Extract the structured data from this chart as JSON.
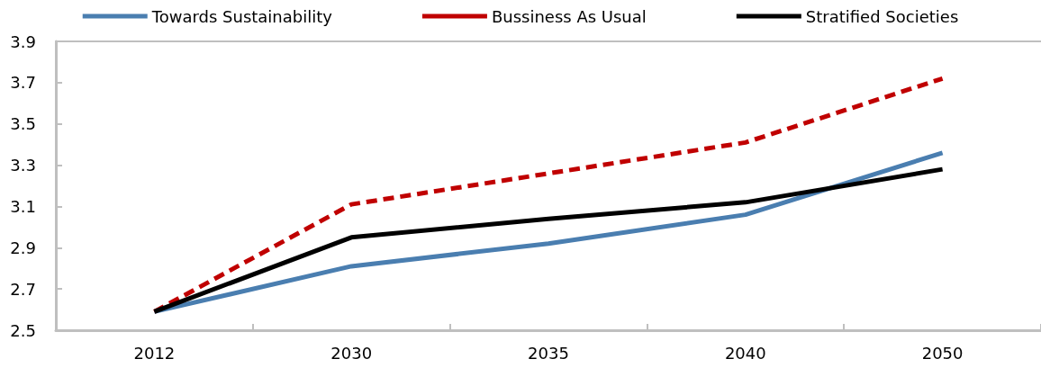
{
  "chart_data": {
    "type": "line",
    "categories": [
      "2012",
      "2030",
      "2035",
      "2040",
      "2050"
    ],
    "series": [
      {
        "name": "Towards Sustainability",
        "color": "#4a7eb0",
        "line_style": "solid",
        "values": [
          2.59,
          2.81,
          2.92,
          3.06,
          3.36
        ]
      },
      {
        "name": "Bussiness As Usual",
        "color": "#c00000",
        "line_style": "dashed",
        "values": [
          2.59,
          3.11,
          3.26,
          3.41,
          3.72
        ]
      },
      {
        "name": "Stratified Societies",
        "color": "#000000",
        "line_style": "solid",
        "values": [
          2.59,
          2.95,
          3.04,
          3.12,
          3.28
        ]
      }
    ],
    "ylim": [
      2.5,
      3.9
    ],
    "yticks": [
      2.5,
      2.7,
      2.9,
      3.1,
      3.3,
      3.5,
      3.7,
      3.9
    ],
    "grid": false,
    "legend": "top",
    "marker": "none"
  }
}
